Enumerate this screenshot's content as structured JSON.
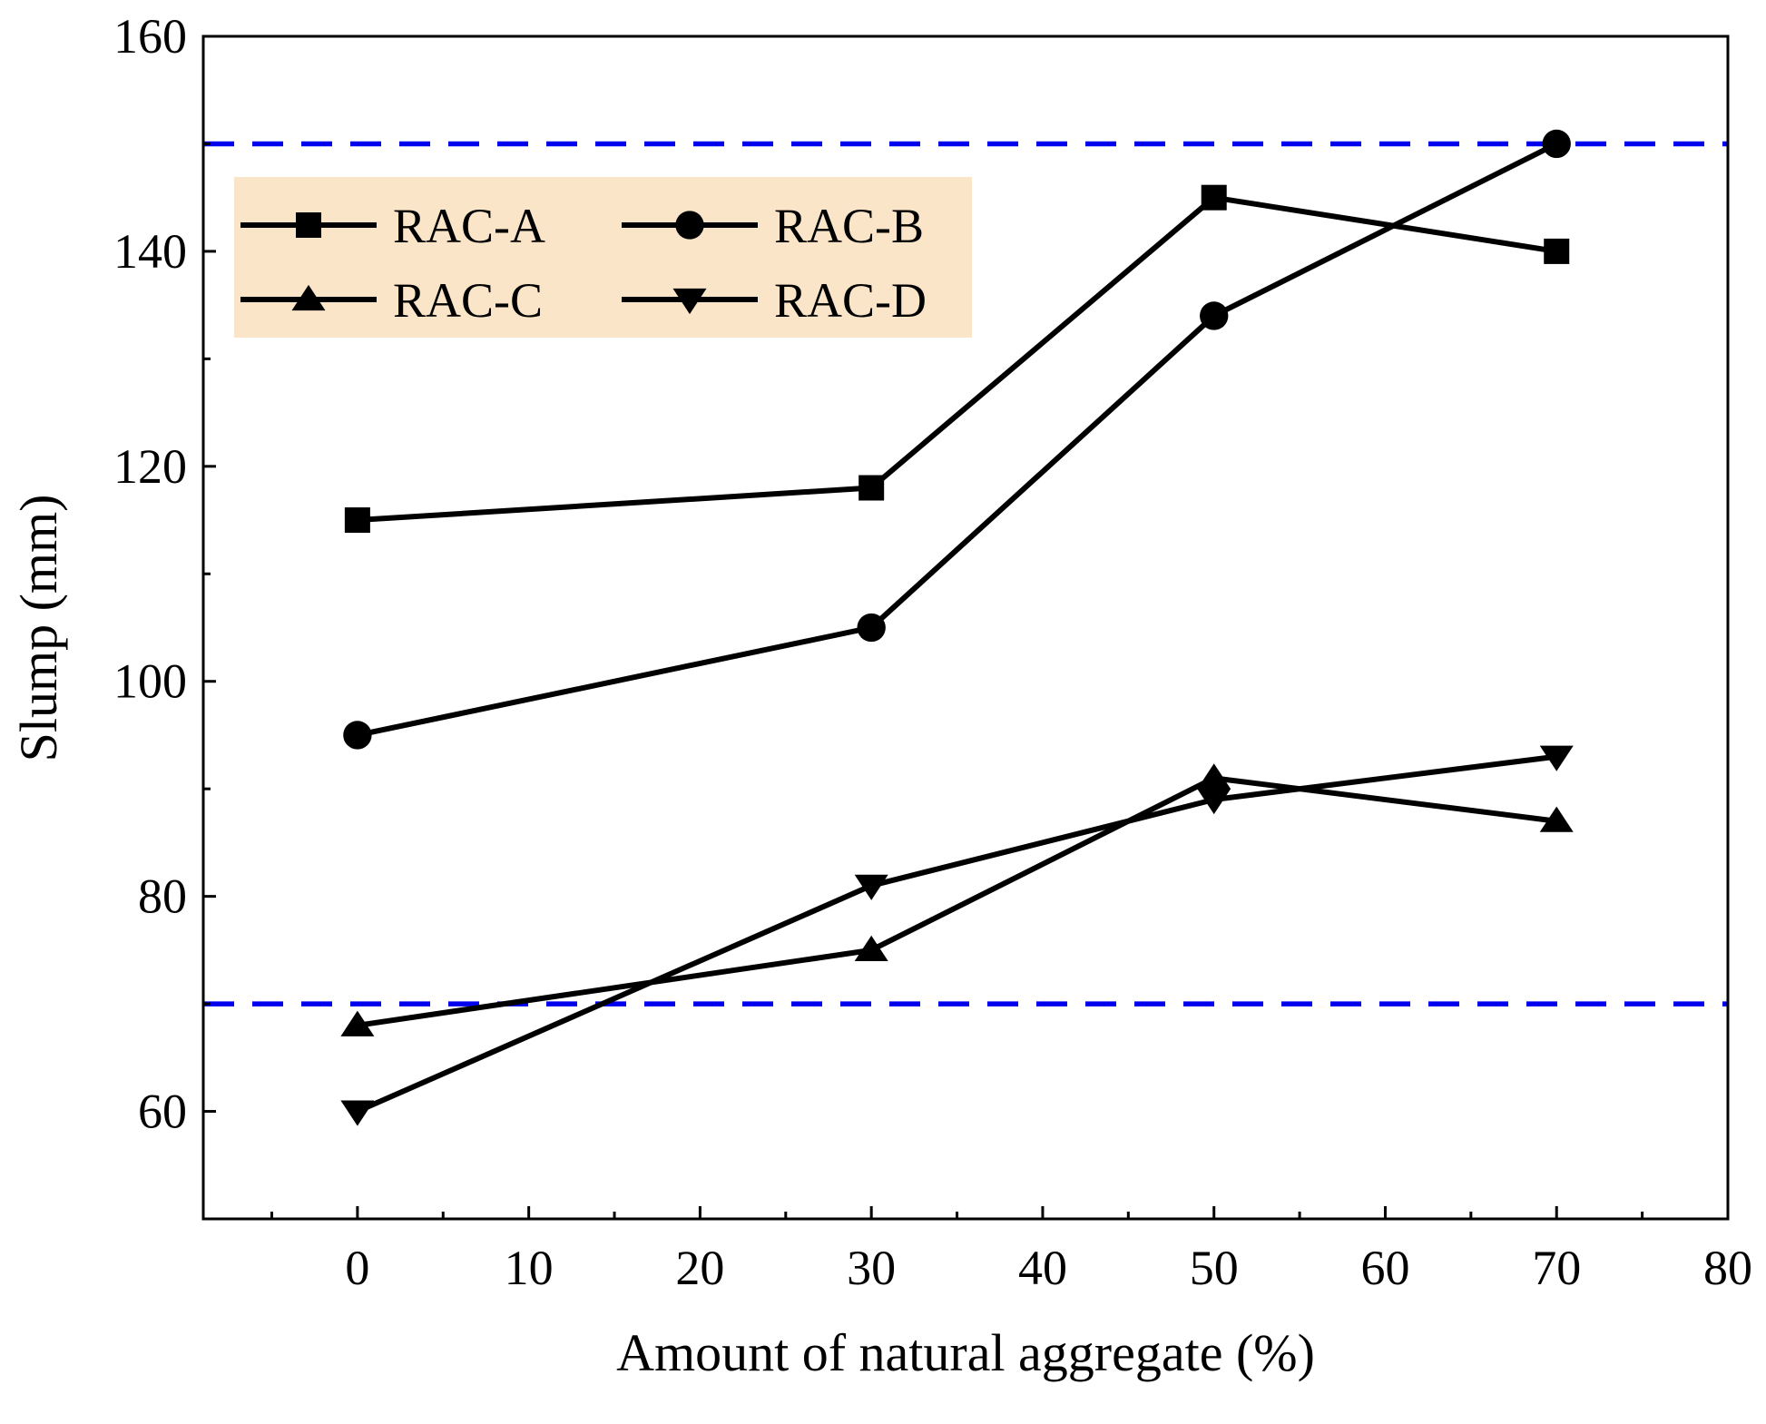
{
  "chart_data": {
    "type": "line",
    "title": "",
    "xlabel": "Amount of natural aggregate (%)",
    "ylabel": "Slump (mm)",
    "xlim": [
      -9,
      80
    ],
    "ylim": [
      50,
      160
    ],
    "x_ticks": [
      0,
      10,
      20,
      30,
      40,
      50,
      60,
      70,
      80
    ],
    "y_ticks": [
      60,
      80,
      100,
      120,
      140,
      160
    ],
    "x": [
      0,
      30,
      50,
      70
    ],
    "series": [
      {
        "name": "RAC-A",
        "marker": "square",
        "values": [
          115,
          118,
          145,
          140
        ]
      },
      {
        "name": "RAC-B",
        "marker": "circle",
        "values": [
          95,
          105,
          134,
          150
        ]
      },
      {
        "name": "RAC-C",
        "marker": "triangle-up",
        "values": [
          68,
          75,
          91,
          87
        ]
      },
      {
        "name": "RAC-D",
        "marker": "triangle-down",
        "values": [
          60,
          81,
          89,
          93
        ]
      }
    ],
    "reference_lines": [
      {
        "y": 150,
        "style": "dashed",
        "color": "#0000ee"
      },
      {
        "y": 70,
        "style": "dashed",
        "color": "#0000ee"
      }
    ],
    "legend_position": "top-left",
    "grid": false,
    "colors": {
      "series": "#000000",
      "reference": "#0000ee",
      "legend_bg": "#fbe5c8"
    }
  }
}
